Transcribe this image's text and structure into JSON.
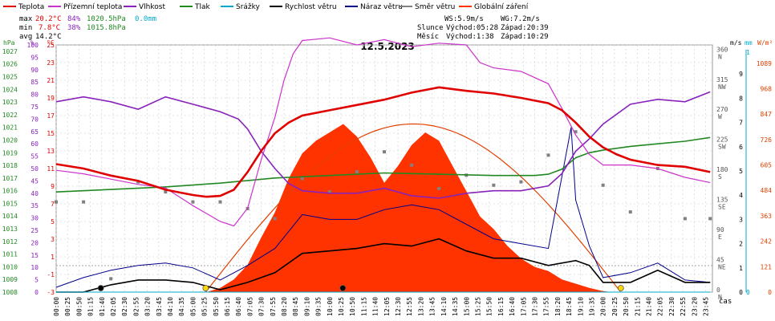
{
  "legend": {
    "items": [
      {
        "label": "Teplota",
        "color": "#e00000"
      },
      {
        "label": "Přízemní teplota",
        "color": "#cc33cc"
      },
      {
        "label": "Vlhkost",
        "color": "#8822bb"
      },
      {
        "label": "Tlak",
        "color": "#228822"
      },
      {
        "label": "Srážky",
        "color": "#00aacc"
      },
      {
        "label": "Rychlost větru",
        "color": "#000000"
      },
      {
        "label": "Náraz větru",
        "color": "#00008b"
      },
      {
        "label": "Směr větru",
        "color": "#808080"
      },
      {
        "label": "Globální záření",
        "color": "#ff3300"
      }
    ]
  },
  "stats": {
    "max_label": "max",
    "max_t": "20.2°C",
    "max_h": "84%",
    "max_p": "1020.5hPa",
    "max_r": "0.0mm",
    "min_label": "min",
    "min_t": "7.8°C",
    "min_h": "38%",
    "min_p": "1015.8hPa",
    "avg_label": "avg",
    "avg_t": "14.2°C"
  },
  "info": {
    "ws": "WS:5.9m/s",
    "wg": "WG:7.2m/s",
    "sun_label": "Slunce",
    "sun_rise": "Východ:05:28",
    "sun_set": "Západ:20:39",
    "moon_label": "Měsíc",
    "moon_rise": "Východ:1:38",
    "moon_set": "Západ:10:29"
  },
  "header": {
    "date": "12.5.2023",
    "xaxis_unit": "čas"
  },
  "colors": {
    "temp": "#e00000",
    "ground": "#cc33cc",
    "hum": "#8822bb",
    "press": "#228822",
    "rain": "#00aacc",
    "wind": "#000000",
    "gust": "#00008b",
    "dir": "#808080",
    "rad": "#ff3300"
  },
  "chart_data": {
    "type": "line",
    "title": "12.5.2023",
    "x_time_ticks": [
      "00:00",
      "00:25",
      "00:50",
      "01:15",
      "01:40",
      "02:05",
      "02:30",
      "02:55",
      "03:20",
      "03:45",
      "04:10",
      "04:35",
      "05:00",
      "05:25",
      "05:50",
      "06:15",
      "06:40",
      "07:05",
      "07:30",
      "07:55",
      "08:20",
      "08:45",
      "09:10",
      "09:35",
      "10:00",
      "10:25",
      "10:50",
      "11:15",
      "11:40",
      "12:05",
      "12:30",
      "12:55",
      "13:20",
      "13:45",
      "14:10",
      "14:35",
      "15:00",
      "15:25",
      "15:50",
      "16:15",
      "16:40",
      "17:05",
      "17:30",
      "17:55",
      "18:20",
      "18:45",
      "19:10",
      "19:35",
      "20:00",
      "20:25",
      "20:50",
      "21:15",
      "21:40",
      "22:05",
      "22:30",
      "22:55",
      "23:20",
      "23:45"
    ],
    "axes": {
      "hpa": {
        "unit": "hPa",
        "ticks": [
          "1027",
          "1026",
          "1025",
          "1024",
          "1023",
          "1022",
          "1021",
          "1020",
          "1019",
          "1018",
          "1017",
          "1016",
          "1015",
          "1014",
          "1013",
          "1012",
          "1011",
          "1010",
          "1009",
          "1008"
        ]
      },
      "pct": {
        "unit": "%",
        "ticks": [
          "100",
          "95",
          "90",
          "85",
          "80",
          "75",
          "70",
          "65",
          "60",
          "55",
          "50",
          "45",
          "40",
          "35",
          "30",
          "25",
          "20",
          "15",
          "10",
          "5",
          "0"
        ]
      },
      "degc": {
        "unit": "°C",
        "ticks": [
          "25",
          "23",
          "21",
          "19",
          "17",
          "15",
          "13",
          "11",
          "9",
          "7",
          "5",
          "3",
          "1",
          "-1",
          "-3"
        ]
      },
      "dir": {
        "unit": "",
        "ticks": [
          "360 N",
          "315 NW",
          "270 W",
          "225 SW",
          "180 S",
          "135 SE",
          "90 E",
          "45 NE",
          "0 N"
        ]
      },
      "ms": {
        "unit": "m/s",
        "ticks": [
          "9",
          "8",
          "7",
          "6",
          "5",
          "4",
          "3",
          "2",
          "1",
          "0"
        ]
      },
      "mm": {
        "unit": "mm",
        "ticks": [
          "1",
          "0"
        ]
      },
      "wm2": {
        "unit": "W/m²",
        "ticks": [
          "1089",
          "968",
          "847",
          "726",
          "605",
          "484",
          "363",
          "242",
          "121",
          "0"
        ]
      }
    },
    "series": [
      {
        "name": "Teplota",
        "unit": "°C",
        "x": [
          "00:00",
          "01:00",
          "02:00",
          "03:00",
          "04:00",
          "05:00",
          "05:30",
          "06:00",
          "06:30",
          "07:00",
          "07:30",
          "08:00",
          "08:30",
          "09:00",
          "10:00",
          "11:00",
          "12:00",
          "13:00",
          "14:00",
          "15:00",
          "16:00",
          "17:00",
          "18:00",
          "18:30",
          "19:00",
          "19:30",
          "20:00",
          "20:30",
          "21:00",
          "22:00",
          "23:00",
          "23:55"
        ],
        "values": [
          11.5,
          11.0,
          10.2,
          9.6,
          8.6,
          8.0,
          7.8,
          7.9,
          8.6,
          10.6,
          13.0,
          15.0,
          16.2,
          17.0,
          17.6,
          18.2,
          18.8,
          19.6,
          20.2,
          19.8,
          19.5,
          19.0,
          18.4,
          17.6,
          16.2,
          14.6,
          13.4,
          12.6,
          12.0,
          11.4,
          11.2,
          10.6
        ]
      },
      {
        "name": "Přízemní teplota",
        "unit": "°C",
        "x": [
          "00:00",
          "01:00",
          "02:00",
          "03:00",
          "04:00",
          "05:00",
          "06:00",
          "06:30",
          "07:00",
          "07:30",
          "08:00",
          "08:20",
          "08:40",
          "09:00",
          "10:00",
          "11:00",
          "12:00",
          "13:00",
          "14:00",
          "15:00",
          "15:30",
          "16:00",
          "17:00",
          "18:00",
          "18:30",
          "19:00",
          "19:30",
          "20:00",
          "21:00",
          "22:00",
          "23:00",
          "23:55"
        ],
        "values": [
          10.8,
          10.4,
          9.8,
          9.2,
          8.8,
          6.8,
          5.0,
          4.5,
          6.5,
          12.0,
          16.8,
          21.0,
          24.0,
          25.5,
          25.8,
          25.0,
          25.6,
          24.8,
          25.2,
          25.0,
          23.0,
          22.4,
          22.0,
          20.6,
          17.8,
          14.8,
          12.6,
          11.4,
          11.4,
          11.0,
          10.0,
          9.4
        ]
      },
      {
        "name": "Vlhkost",
        "unit": "%",
        "x": [
          "00:00",
          "01:00",
          "02:00",
          "03:00",
          "04:00",
          "05:00",
          "06:00",
          "06:40",
          "07:00",
          "07:30",
          "08:00",
          "08:30",
          "09:00",
          "10:00",
          "11:00",
          "12:00",
          "13:00",
          "14:00",
          "15:00",
          "16:00",
          "17:00",
          "18:00",
          "18:30",
          "19:00",
          "19:30",
          "20:00",
          "21:00",
          "22:00",
          "23:00",
          "23:55"
        ],
        "values": [
          77,
          79,
          77,
          74,
          79,
          76,
          73,
          70,
          66,
          57,
          50,
          44,
          41,
          40,
          40,
          42,
          39,
          38,
          40,
          41,
          41,
          43,
          48,
          57,
          62,
          68,
          76,
          78,
          77,
          81
        ]
      },
      {
        "name": "Tlak",
        "unit": "hPa",
        "x": [
          "00:00",
          "02:00",
          "04:00",
          "06:00",
          "08:00",
          "10:00",
          "12:00",
          "14:00",
          "16:00",
          "17:00",
          "17:30",
          "18:00",
          "18:30",
          "19:00",
          "19:30",
          "20:00",
          "21:00",
          "22:00",
          "23:00",
          "23:55"
        ],
        "values": [
          1015.9,
          1016.1,
          1016.3,
          1016.6,
          1017.0,
          1017.2,
          1017.4,
          1017.3,
          1017.2,
          1017.2,
          1017.2,
          1017.3,
          1017.7,
          1018.6,
          1019.0,
          1019.2,
          1019.5,
          1019.7,
          1019.9,
          1020.2
        ]
      },
      {
        "name": "Srážky",
        "unit": "mm",
        "x": [
          "00:00",
          "23:55"
        ],
        "values": [
          0.0,
          0.0
        ]
      },
      {
        "name": "Rychlost větru",
        "unit": "m/s",
        "x": [
          "00:00",
          "01:00",
          "02:00",
          "03:00",
          "04:00",
          "05:00",
          "06:00",
          "07:00",
          "08:00",
          "09:00",
          "10:00",
          "11:00",
          "12:00",
          "13:00",
          "14:00",
          "15:00",
          "16:00",
          "17:00",
          "18:00",
          "19:00",
          "19:30",
          "20:00",
          "21:00",
          "22:00",
          "23:00",
          "23:55"
        ],
        "values": [
          0.0,
          0.0,
          0.3,
          0.5,
          0.5,
          0.4,
          0.1,
          0.4,
          0.8,
          1.6,
          1.7,
          1.8,
          2.0,
          1.9,
          2.2,
          1.7,
          1.4,
          1.4,
          1.1,
          1.3,
          1.1,
          0.4,
          0.4,
          0.9,
          0.4,
          0.4
        ]
      },
      {
        "name": "Náraz větru",
        "unit": "m/s",
        "x": [
          "00:00",
          "01:00",
          "02:00",
          "03:00",
          "04:00",
          "05:00",
          "06:00",
          "07:00",
          "08:00",
          "09:00",
          "10:00",
          "11:00",
          "12:00",
          "13:00",
          "14:00",
          "15:00",
          "16:00",
          "17:00",
          "18:00",
          "18:50",
          "19:00",
          "19:30",
          "20:00",
          "21:00",
          "22:00",
          "23:00",
          "23:55"
        ],
        "values": [
          0.2,
          0.6,
          0.9,
          1.1,
          1.2,
          1.0,
          0.5,
          1.1,
          1.8,
          3.2,
          3.0,
          3.0,
          3.4,
          3.6,
          3.4,
          2.8,
          2.2,
          2.0,
          1.8,
          6.8,
          3.8,
          1.9,
          0.6,
          0.8,
          1.2,
          0.5,
          0.4
        ]
      },
      {
        "name": "Směr větru",
        "unit": "°",
        "x": [
          "00:00",
          "01:00",
          "02:00",
          "03:00",
          "04:00",
          "05:00",
          "06:00",
          "07:00",
          "08:00",
          "09:00",
          "10:00",
          "11:00",
          "12:00",
          "13:00",
          "14:00",
          "15:00",
          "16:00",
          "17:00",
          "18:00",
          "19:00",
          "20:00",
          "21:00",
          "22:00",
          "23:00",
          "23:55"
        ],
        "values": [
          135,
          135,
          20,
          165,
          150,
          135,
          135,
          125,
          110,
          170,
          150,
          180,
          210,
          190,
          155,
          175,
          160,
          165,
          205,
          240,
          160,
          120,
          185,
          110,
          110
        ]
      },
      {
        "name": "Globální záření",
        "unit": "W/m²",
        "x": [
          "05:30",
          "06:00",
          "06:30",
          "07:00",
          "07:30",
          "08:00",
          "08:30",
          "09:00",
          "09:30",
          "10:00",
          "10:30",
          "11:00",
          "11:30",
          "12:00",
          "12:30",
          "13:00",
          "13:30",
          "14:00",
          "14:30",
          "15:00",
          "15:30",
          "16:00",
          "16:30",
          "17:00",
          "17:30",
          "18:00",
          "18:30",
          "19:00",
          "19:30",
          "20:00",
          "20:20"
        ],
        "values": [
          0,
          20,
          60,
          130,
          260,
          380,
          540,
          660,
          720,
          760,
          800,
          740,
          640,
          520,
          600,
          700,
          760,
          720,
          600,
          480,
          360,
          300,
          220,
          160,
          120,
          100,
          60,
          40,
          20,
          5,
          0
        ]
      }
    ]
  }
}
